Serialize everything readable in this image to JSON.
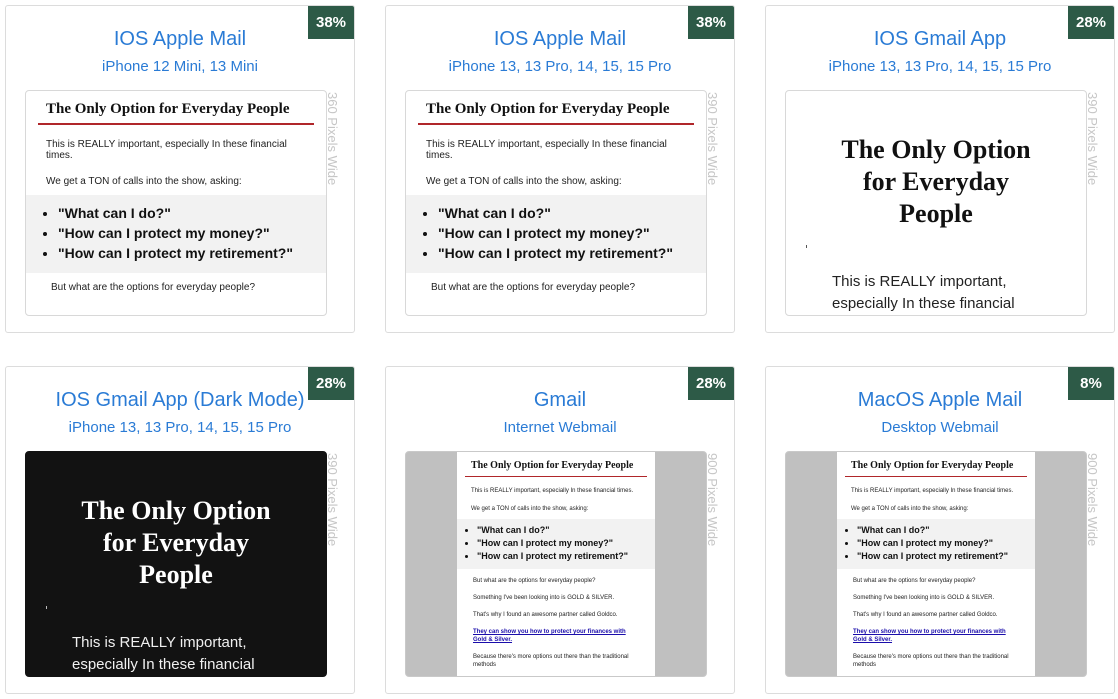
{
  "email": {
    "heading": "The Only Option for Everyday People",
    "heading_lines": [
      "The Only Option",
      "for Everyday",
      "People"
    ],
    "p1": "This is REALLY important, especially In these financial times.",
    "p2": "We get a TON of calls into the show, asking:",
    "bullets": [
      "\"What can I do?\"",
      "\"How can I protect my money?\"",
      "\"How can I protect my retirement?\""
    ],
    "p3": "But what are the options for everyday people?",
    "p4": "Something I've been looking into is GOLD & SILVER.",
    "p5": "That's why I found an awesome partner called Goldco.",
    "link": "They can show you how to protect your finances with Gold & Silver.",
    "p6": "Because there's more options out there than the traditional",
    "p6b": "methods",
    "gmail_body_lines": [
      "This is REALLY important,",
      "especially In these financial"
    ]
  },
  "cards": [
    {
      "title": "IOS Apple Mail",
      "subtitle": "iPhone 12 Mini, 13 Mini",
      "badge": "38%",
      "width_label": "360 Pixels Wide"
    },
    {
      "title": "IOS Apple Mail",
      "subtitle": "iPhone 13, 13 Pro, 14, 15, 15 Pro",
      "badge": "38%",
      "width_label": "390 Pixels Wide"
    },
    {
      "title": "IOS Gmail App",
      "subtitle": "iPhone 13, 13 Pro, 14, 15, 15 Pro",
      "badge": "28%",
      "width_label": "390 Pixels Wide"
    },
    {
      "title": "IOS Gmail App (Dark Mode)",
      "subtitle": "iPhone 13, 13 Pro, 14, 15, 15 Pro",
      "badge": "28%",
      "width_label": "390 Pixels Wide"
    },
    {
      "title": "Gmail",
      "subtitle": "Internet Webmail",
      "badge": "28%",
      "width_label": "900 Pixels Wide"
    },
    {
      "title": "MacOS Apple Mail",
      "subtitle": "Desktop Webmail",
      "badge": "8%",
      "width_label": "900 Pixels Wide"
    }
  ],
  "colors": {
    "accent": "#2a7bd5",
    "badge": "#2d5a47",
    "rule": "#b0262a",
    "dark_bg": "#121212"
  }
}
